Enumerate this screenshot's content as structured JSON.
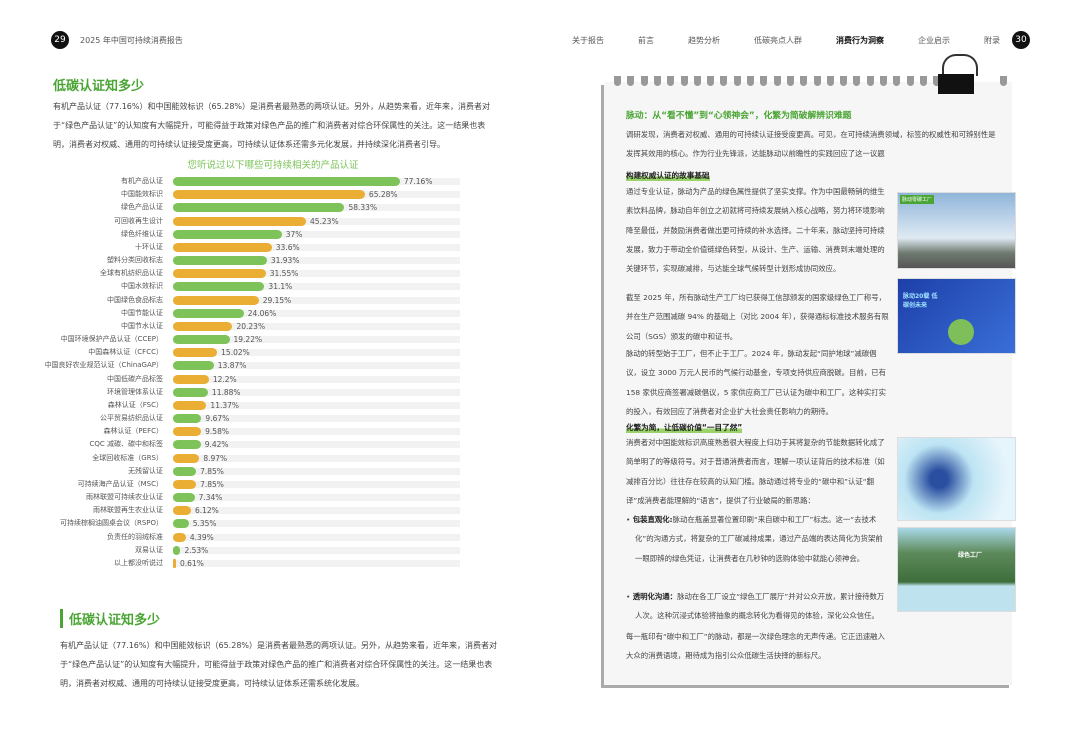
{
  "header": {
    "left_page": "29",
    "title": "2025 年中国可持续消费报告",
    "right_page": "30",
    "nav": [
      "关于报告",
      "前言",
      "趋势分析",
      "低碳亮点人群",
      "消费行为洞察",
      "企业启示",
      "附录"
    ],
    "active_nav": "消费行为洞察"
  },
  "left": {
    "heading": "低碳认证知多少",
    "intro": "有机产品认证（77.16%）和中国能效标识（65.28%）是消费者最熟悉的两项认证。另外，从趋势来看，近年来，消费者对于“绿色产品认证”的认知度有大幅提升，可能得益于政策对绿色产品的推广和消费者对综合环保属性的关注。这一结果也表明，消费者对权威、通用的可持续认证接受度更高，可持续认证体系还需多元化发展，并持续深化消费者引导。",
    "heading2": "低碳认证知多少",
    "outro": "有机产品认证（77.16%）和中国能效标识（65.28%）是消费者最熟悉的两项认证。另外，从趋势来看，近年来，消费者对于“绿色产品认证”的认知度有大幅提升，可能得益于政策对绿色产品的推广和消费者对综合环保属性的关注。这一结果也表明，消费者对权威、通用的可持续认证接受度更高，可持续认证体系还需系统化发展。"
  },
  "chart_data": {
    "type": "bar",
    "orientation": "horizontal",
    "title": "您听说过以下哪些可持续相关的产品认证",
    "unit": "%",
    "xlim": [
      0,
      100
    ],
    "grid": false,
    "colors": [
      "#7dc35a",
      "#eaae35"
    ],
    "categories": [
      "有机产品认证",
      "中国能效标识",
      "绿色产品认证",
      "可回收再生设计",
      "绿色纤维认证",
      "十环认证",
      "塑料分类回收标志",
      "全球有机纺织品认证",
      "中国水效标识",
      "中国绿色食品标志",
      "中国节能认证",
      "中国节水认证",
      "中国环境保护产品认证（CCEP）",
      "中国森林认证（CFCC）",
      "中国良好农业规范认证（ChinaGAP）",
      "中国低碳产品标签",
      "环境管理体系认证",
      "森林认证（FSC）",
      "公平贸易纺织品认证",
      "森林认证（PEFC）",
      "CQC 减碳、碳中和标签",
      "全球回收标准（GRS）",
      "无残留认证",
      "可持续海产品认证（MSC）",
      "雨林联盟可持续农业认证",
      "雨林联盟再生农业认证",
      "可持续棕榈油圆桌会议（RSPO）",
      "负责任的羽绒标准",
      "双易认证",
      "以上都没听说过"
    ],
    "values": [
      77.16,
      65.28,
      58.33,
      45.23,
      37,
      33.6,
      31.93,
      31.55,
      31.1,
      29.15,
      24.06,
      20.23,
      19.22,
      15.02,
      13.87,
      12.2,
      11.88,
      11.37,
      9.67,
      9.58,
      9.42,
      8.97,
      7.85,
      7.85,
      7.34,
      6.12,
      5.35,
      4.39,
      2.53,
      0.61
    ],
    "labels": [
      "77.16%",
      "65.28%",
      "58.33%",
      "45.23%",
      "37%",
      "33.6%",
      "31.93%",
      "31.55%",
      "31.1%",
      "29.15%",
      "24.06%",
      "20.23%",
      "19.22%",
      "15.02%",
      "13.87%",
      "12.2%",
      "11.88%",
      "11.37%",
      "9.67%",
      "9.58%",
      "9.42%",
      "8.97%",
      "7.85%",
      "7.85%",
      "7.34%",
      "6.12%",
      "5.35%",
      "4.39%",
      "2.53%",
      "0.61%"
    ]
  },
  "right": {
    "title": "脉动：从“看不懂”到“心领神会”，化繁为简破解辨识难题",
    "p1": "调研发现，消费者对权威、通用的可持续认证接受度更高。可见，在可持续消费领域，标签的权威性和可辨别性是发挥其效用的核心。作为行业先锋派，达能脉动以前瞻性的实践回应了这一议题",
    "s1": "构建权威认证的故事基础",
    "p2": "通过专业认证，脉动为产品的绿色属性提供了坚实支撑。作为中国最畅销的维生素饮料品牌，脉动自年创立之初就将可持续发展纳入核心战略，努力将环境影响降至最低，并鼓励消费者做出更可持续的补水选择。二十年来，脉动坚持可持续发展，致力于带动全价值链绿色转型，从设计、生产、运输、消费到末端处理的关键环节，实现碳减排，与达能全球气候转型计划形成协同效应。",
    "p3": "截至 2025 年，所有脉动生产工厂均已获得工信部颁发的国家级绿色工厂称号，并在生产范围减碳 94% 的基础上（对比 2004 年），获得通标标准技术服务有限公司（SGS）颁发的碳中和证书。",
    "p4": "脉动的转型始于工厂，但不止于工厂。2024 年，脉动发起“同护地球”减碳倡议，设立 3000 万元人民币的气候行动基金，专项支持供应商脱碳。目前，已有 158 家供应商签署减碳倡议，5 家供应商工厂已认证为碳中和工厂。这种实打实的投入，有效回应了消费者对企业扩大社会责任影响力的期待。",
    "s2": "化繁为简，让低碳价值“一目了然”",
    "p5": "消费者对中国能效标识高度熟悉很大程度上归功于其将复杂的节能数据转化成了简单明了的等级符号。对于普通消费者而言，理解一项认证背后的技术标准（如减排百分比）往往存在较高的认知门槛。脉动通过将专业的“碳中和”认证“翻译”成消费者能理解的“语言”，提供了行业破局的新思路：",
    "b1_head": "包装直观化:",
    "b1": "脉动在瓶盖显著位置印刷“来自碳中和工厂”标志。这一“去技术化”的沟通方式，将复杂的工厂碳减排成果，通过产品端的表达简化为货架前一眼即辨的绿色凭证，让消费者在几秒钟的选购体验中就能心领神会。",
    "b2_head": "透明化沟通：",
    "b2": "脉动在各工厂设立“绿色工厂展厅”并对公众开放，累计接待数万人次。这种沉浸式体验将抽象的概念转化为看得见的体验，深化公众信任。",
    "p6": "每一瓶印有“碳中和工厂”的脉动，都是一次绿色理念的无声传递。它正迅速融入大众的消费语境，期待成为指引公众低碳生活抉择的新标尺。",
    "img1_caption": "脉动零碳工厂",
    "img2_caption": "脉动20载 低碳创未来",
    "img4_caption": "绿色工厂"
  }
}
